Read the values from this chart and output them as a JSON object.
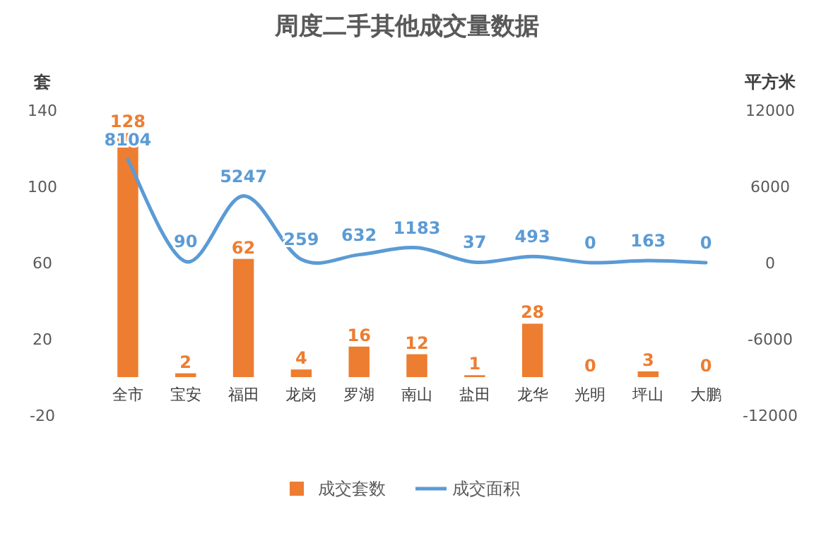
{
  "chart_data": {
    "type": "bar",
    "title": "周度二手其他成交量数据",
    "ylabel": "套",
    "y2label": "平方米",
    "categories": [
      "全市",
      "宝安",
      "福田",
      "龙岗",
      "罗湖",
      "南山",
      "盐田",
      "龙华",
      "光明",
      "坪山",
      "大鹏"
    ],
    "series": [
      {
        "name": "成交套数",
        "color": "#ed7d31",
        "values": [
          128,
          2,
          62,
          4,
          16,
          12,
          1,
          28,
          0,
          3,
          0
        ]
      },
      {
        "name": "成交面积",
        "type": "line",
        "axis": "y2",
        "color": "#5b9bd5",
        "values": [
          8104,
          90,
          5247,
          259,
          632,
          1183,
          37,
          493,
          0,
          163,
          0
        ]
      }
    ],
    "ylim": [
      -20,
      140
    ],
    "yticks": [
      -20,
      20,
      60,
      100,
      140
    ],
    "y2lim": [
      -12000,
      12000
    ],
    "y2ticks": [
      -12000,
      -6000,
      0,
      6000,
      12000
    ],
    "data_labels": true,
    "legend": "bottom"
  }
}
